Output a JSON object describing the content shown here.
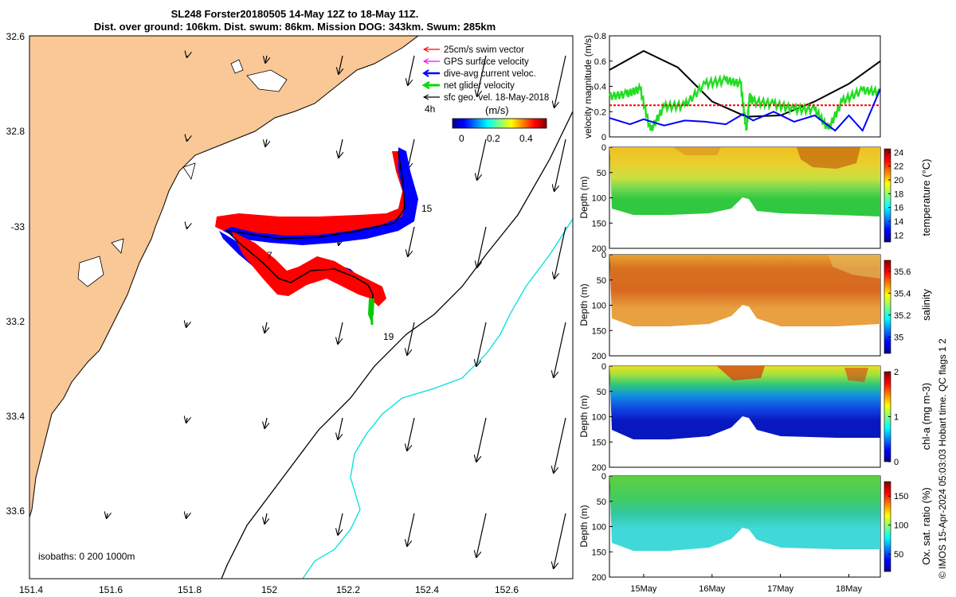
{
  "title": {
    "line1": "SL248 Forster20180505 14-May 12Z to 18-May 11Z.",
    "line2": "Dist. over ground: 106km. Dist. swum: 86km. Mission DOG: 343km. Swum: 285km"
  },
  "credit": "© IMOS 15-Apr-2024 05:03:03 Hobart time. QC flags 1  2",
  "map": {
    "lon_ticks": [
      "151.4",
      "151.6",
      "151.8",
      "152",
      "152.2",
      "152.4",
      "152.6"
    ],
    "lat_ticks": [
      "32.6",
      "32.8",
      "-33",
      "33.2",
      "33.4",
      "33.6"
    ],
    "isobaths_label": "isobaths: 0   200   1000m",
    "markers": [
      "4h",
      "15",
      "7",
      "19"
    ],
    "legend": [
      {
        "label": "25cm/s swim vector",
        "color": "#ff0000"
      },
      {
        "label": "GPS surface velocity",
        "color": "#ff00ff"
      },
      {
        "label": "dive-avg current veloc.",
        "color": "#0000ff"
      },
      {
        "label": "net glider velocity",
        "color": "#00dd00"
      },
      {
        "label": "sfc geo. vel. 18-May-2018",
        "color": "#000000"
      }
    ],
    "colorbar": {
      "unit": "(m/s)",
      "ticks": [
        "0",
        "0.2",
        "0.4"
      ]
    },
    "colors": {
      "land": "#f9c896",
      "isobath_200": "#000000",
      "isobath_1000": "#00e0e0",
      "track_red": "#ff0000",
      "track_blue": "#0000ff"
    }
  },
  "chart_data": [
    {
      "type": "line",
      "title": "",
      "ylabel": "velocity magnitude (m/s)",
      "ylim": [
        0,
        0.8
      ],
      "yticks": [
        "0",
        "0.2",
        "0.4",
        "0.6",
        "0.8"
      ],
      "xlim": [
        14.5,
        18.46
      ],
      "series": [
        {
          "name": "surface geostrophic",
          "color": "#000000",
          "x": [
            14.5,
            15.0,
            15.5,
            16.0,
            16.5,
            17.0,
            17.5,
            18.0,
            18.46
          ],
          "values": [
            0.53,
            0.68,
            0.55,
            0.28,
            0.16,
            0.17,
            0.28,
            0.42,
            0.6
          ]
        },
        {
          "name": "net glider velocity",
          "color": "#22dd22",
          "x": [
            14.5,
            14.75,
            14.95,
            15.1,
            15.3,
            15.6,
            15.9,
            16.2,
            16.42,
            16.5,
            16.55,
            16.6,
            16.9,
            17.2,
            17.5,
            17.7,
            17.9,
            18.2,
            18.46
          ],
          "values": [
            0.32,
            0.34,
            0.38,
            0.05,
            0.24,
            0.25,
            0.42,
            0.45,
            0.42,
            0.05,
            0.32,
            0.28,
            0.26,
            0.22,
            0.22,
            0.06,
            0.28,
            0.37,
            0.35
          ]
        },
        {
          "name": "swim speed",
          "color": "#ff0000",
          "x": [
            14.5,
            18.46
          ],
          "values": [
            0.25,
            0.25
          ]
        },
        {
          "name": "dive-avg current",
          "color": "#0000ff",
          "x": [
            14.5,
            14.8,
            15.0,
            15.3,
            15.6,
            15.9,
            16.2,
            16.45,
            16.6,
            16.9,
            17.2,
            17.5,
            17.8,
            18.0,
            18.2,
            18.46
          ],
          "values": [
            0.15,
            0.1,
            0.14,
            0.09,
            0.13,
            0.12,
            0.1,
            0.18,
            0.13,
            0.2,
            0.12,
            0.17,
            0.05,
            0.17,
            0.05,
            0.38
          ]
        }
      ]
    },
    {
      "type": "heatmap",
      "ylabel": "Depth (m)",
      "ylim": [
        200,
        0
      ],
      "yticks": [
        "0",
        "50",
        "100",
        "150",
        "200"
      ],
      "colorbar_label": "temperature (°C)",
      "colorbar_ticks": [
        "12",
        "14",
        "16",
        "18",
        "20",
        "22",
        "24"
      ],
      "colorbar_range": [
        11,
        24.5
      ]
    },
    {
      "type": "heatmap",
      "ylabel": "Depth (m)",
      "ylim": [
        200,
        0
      ],
      "yticks": [
        "0",
        "50",
        "100",
        "150",
        "200"
      ],
      "colorbar_label": "salinity",
      "colorbar_ticks": [
        "35",
        "35.2",
        "35.4",
        "35.6"
      ],
      "colorbar_range": [
        34.85,
        35.7
      ]
    },
    {
      "type": "heatmap",
      "ylabel": "Depth (m)",
      "ylim": [
        200,
        0
      ],
      "yticks": [
        "0",
        "50",
        "100",
        "150",
        "200"
      ],
      "colorbar_label": "chl-a (mg m-3)",
      "colorbar_ticks": [
        "0",
        "1",
        "2"
      ],
      "colorbar_range": [
        0,
        2
      ]
    },
    {
      "type": "heatmap",
      "ylabel": "Depth (m)",
      "ylim": [
        200,
        0
      ],
      "yticks": [
        "0",
        "50",
        "100",
        "150",
        "200"
      ],
      "colorbar_label": "Ox. sat. ratio (%)",
      "colorbar_ticks": [
        "50",
        "100",
        "150"
      ],
      "colorbar_range": [
        20,
        175
      ]
    }
  ],
  "time_axis": {
    "ticks": [
      "15May",
      "16May",
      "17May",
      "18May"
    ]
  }
}
